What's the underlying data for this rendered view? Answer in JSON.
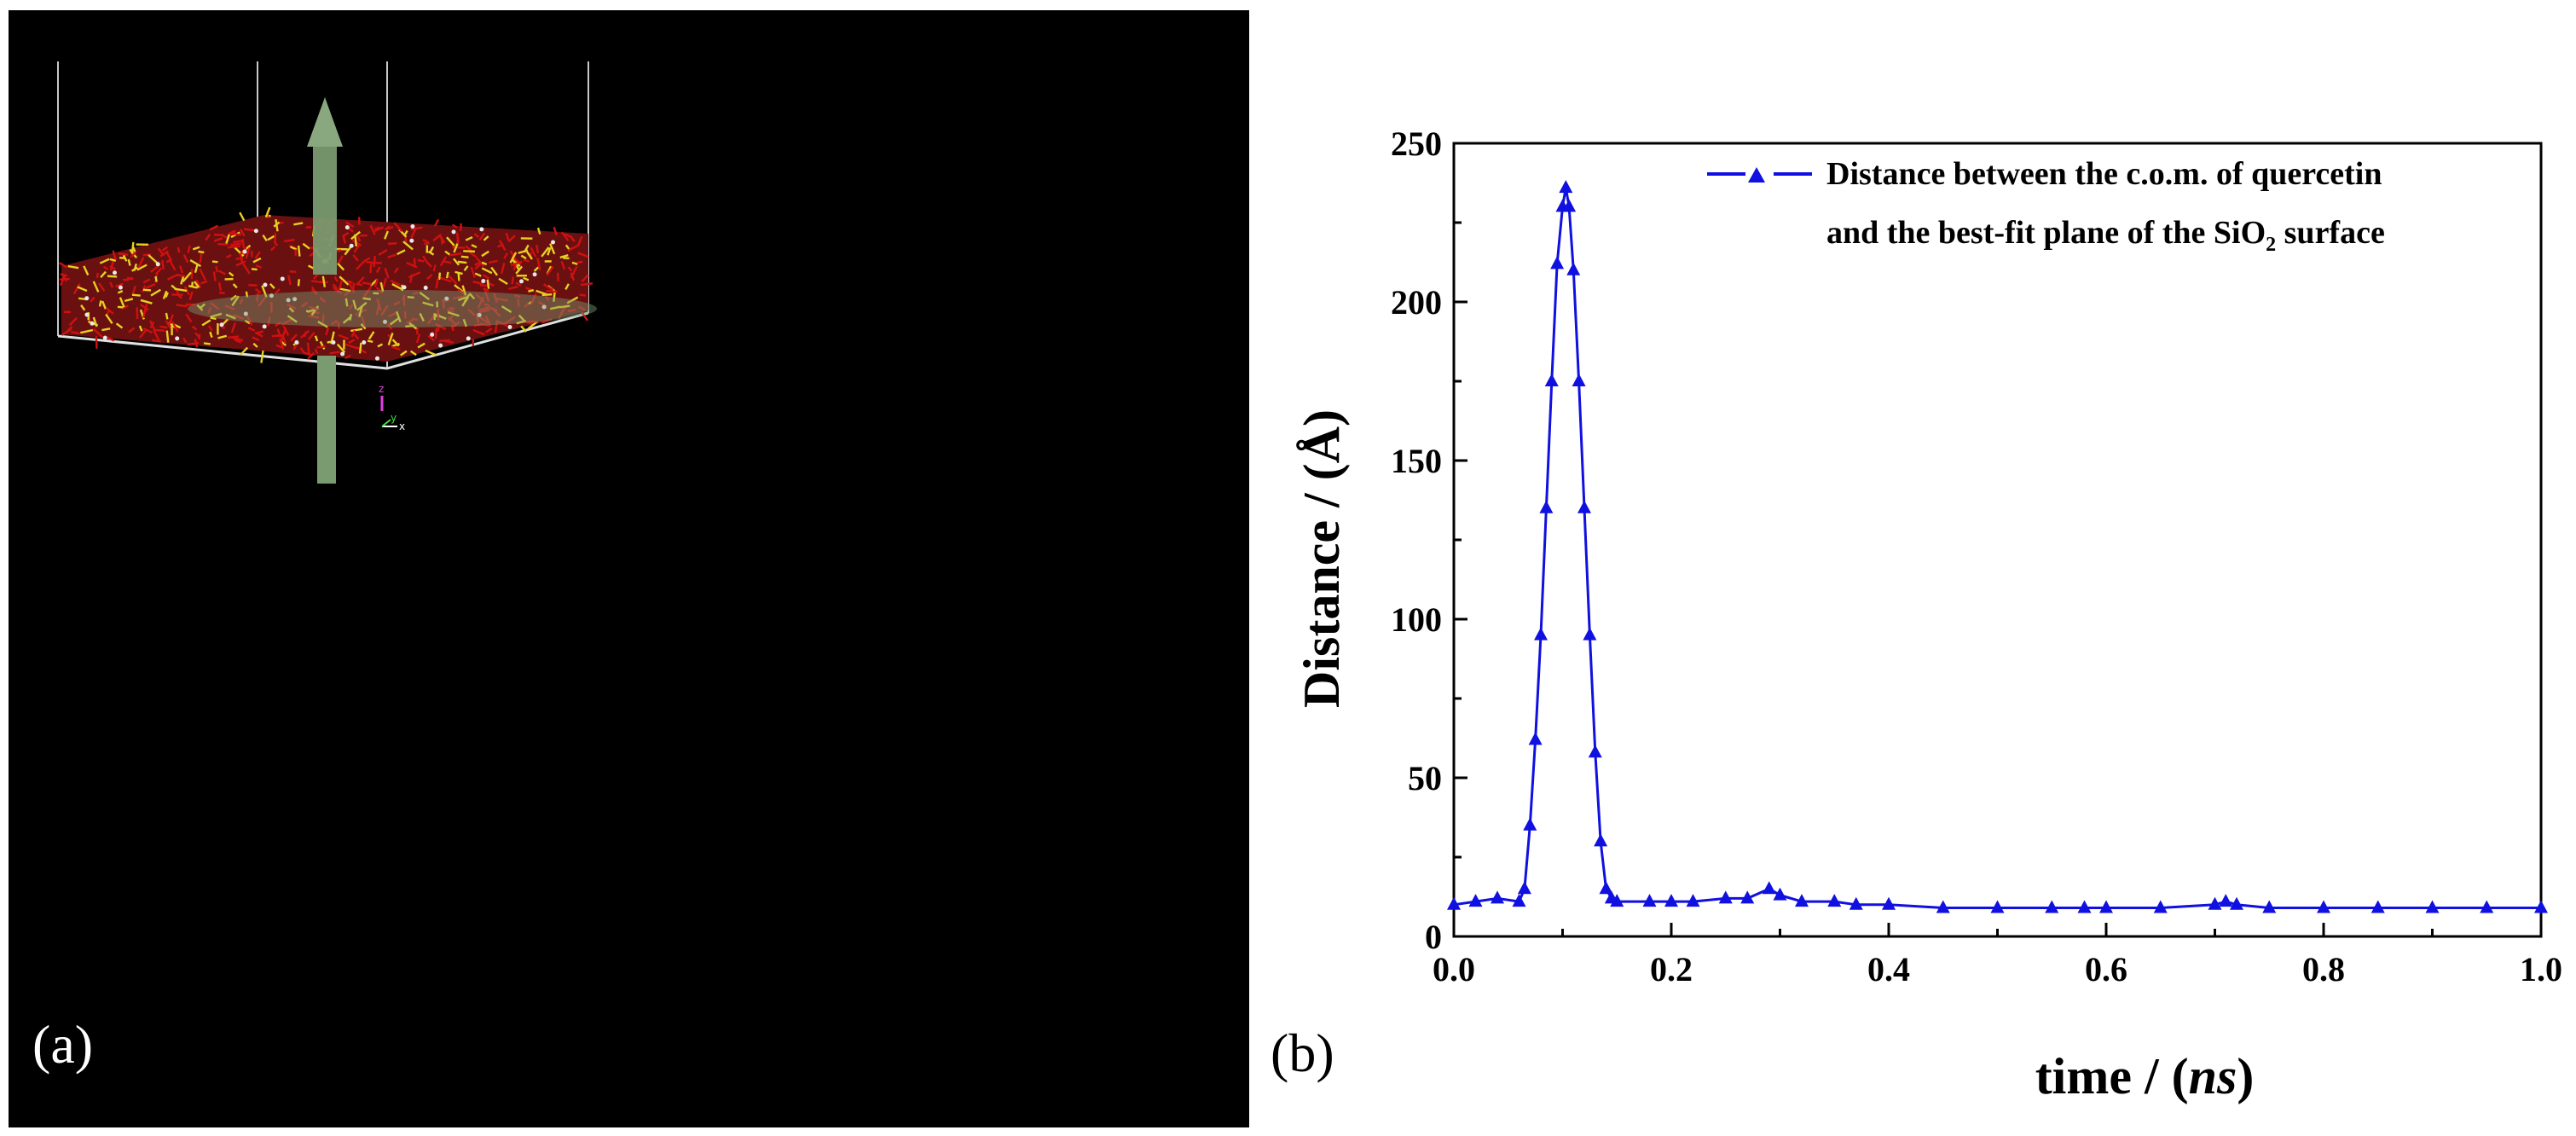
{
  "figure": {
    "panel_a": {
      "label": "(a)",
      "description_axes": {
        "z": "z",
        "y": "y",
        "x": "x"
      },
      "colors": {
        "background": "#000000",
        "bonds_red": "#d01010",
        "bonds_yellow": "#e8d020",
        "arrow": "#7a9a70",
        "box": "#c8c8c8"
      }
    },
    "panel_b": {
      "label": "(b)"
    }
  },
  "chart_data": {
    "type": "line",
    "title": "",
    "xlabel": "time / (ns)",
    "xlabel_parts": {
      "prefix": "time / (",
      "italic": "ns",
      "suffix": ")"
    },
    "ylabel": "Distance / (Å)",
    "xlim": [
      0.0,
      1.0
    ],
    "ylim": [
      0,
      250
    ],
    "x_ticks": [
      "0.0",
      "0.2",
      "0.4",
      "0.6",
      "0.8",
      "1.0"
    ],
    "y_ticks": [
      "0",
      "50",
      "100",
      "150",
      "200",
      "250"
    ],
    "grid": false,
    "legend_position": "top-right",
    "series": [
      {
        "name": "Distance between the c.o.m. of quercetin and the best-fit plane of the SiO2 surface",
        "legend_line1": "Distance between the c.o.m. of quercetin",
        "legend_line2_prefix": "and the best-fit plane of the SiO",
        "legend_line2_sub": "2",
        "legend_line2_suffix": " surface",
        "color": "#1010e0",
        "marker": "triangle",
        "x": [
          0.0,
          0.02,
          0.04,
          0.06,
          0.065,
          0.07,
          0.075,
          0.08,
          0.085,
          0.09,
          0.095,
          0.1,
          0.103,
          0.106,
          0.11,
          0.115,
          0.12,
          0.125,
          0.13,
          0.135,
          0.14,
          0.145,
          0.15,
          0.18,
          0.2,
          0.22,
          0.25,
          0.27,
          0.29,
          0.3,
          0.32,
          0.35,
          0.37,
          0.4,
          0.45,
          0.5,
          0.55,
          0.58,
          0.6,
          0.65,
          0.7,
          0.71,
          0.72,
          0.75,
          0.8,
          0.85,
          0.9,
          0.95,
          1.0
        ],
        "values": [
          10,
          11,
          12,
          11,
          15,
          35,
          62,
          95,
          135,
          175,
          212,
          230,
          236,
          230,
          210,
          175,
          135,
          95,
          58,
          30,
          15,
          12,
          11,
          11,
          11,
          11,
          12,
          12,
          15,
          13,
          11,
          11,
          10,
          10,
          9,
          9,
          9,
          9,
          9,
          9,
          10,
          11,
          10,
          9,
          9,
          9,
          9,
          9,
          9
        ]
      }
    ]
  }
}
